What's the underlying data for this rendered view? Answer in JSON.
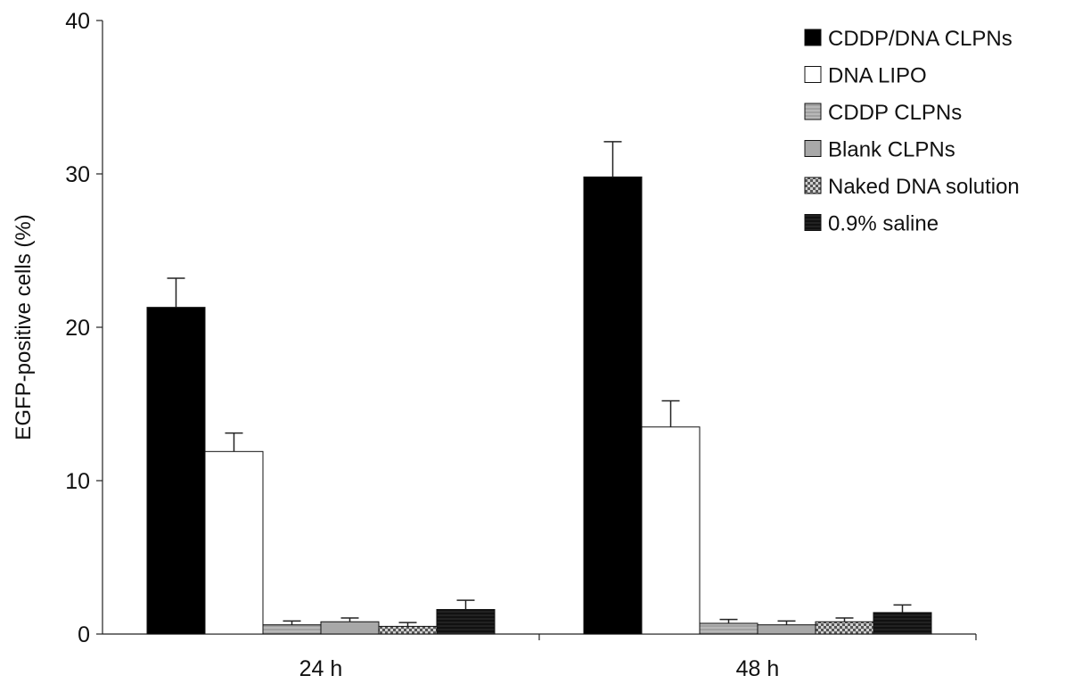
{
  "chart_data": {
    "type": "bar",
    "title": "",
    "xlabel": "",
    "ylabel": "EGFP-positive cells (%)",
    "categories": [
      "24 h",
      "48 h"
    ],
    "ylim": [
      0,
      40
    ],
    "yticks": [
      0,
      10,
      20,
      30,
      40
    ],
    "grid": false,
    "legend_position": "top-right",
    "series": [
      {
        "name": "CDDP/DNA CLPNs",
        "values": [
          21.3,
          29.8
        ],
        "errors": [
          1.9,
          2.3
        ],
        "fill": "#000000",
        "pattern": "solid"
      },
      {
        "name": "DNA LIPO",
        "values": [
          11.9,
          13.5
        ],
        "errors": [
          1.2,
          1.7
        ],
        "fill": "#ffffff",
        "pattern": "solid"
      },
      {
        "name": "CDDP CLPNs",
        "values": [
          0.6,
          0.7
        ],
        "errors": [
          0.25,
          0.25
        ],
        "fill": "#b0b0b0",
        "pattern": "fine-lines"
      },
      {
        "name": "Blank CLPNs",
        "values": [
          0.8,
          0.6
        ],
        "errors": [
          0.25,
          0.25
        ],
        "fill": "#a8a8a8",
        "pattern": "solid"
      },
      {
        "name": "Naked DNA solution",
        "values": [
          0.5,
          0.8
        ],
        "errors": [
          0.25,
          0.25
        ],
        "fill": "#9a9a9a",
        "pattern": "checker"
      },
      {
        "name": "0.9% saline",
        "values": [
          1.6,
          1.4
        ],
        "errors": [
          0.6,
          0.5
        ],
        "fill": "#1a1a1a",
        "pattern": "dark-lines"
      }
    ]
  }
}
